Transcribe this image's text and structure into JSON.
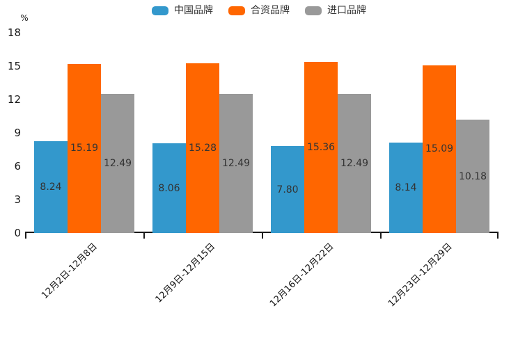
{
  "chart_data": {
    "type": "bar",
    "title": "",
    "xlabel": "",
    "ylabel": "%",
    "ylim": [
      0,
      18
    ],
    "y_ticks": [
      0,
      3,
      6,
      9,
      12,
      15,
      18
    ],
    "grid": false,
    "legend_position": "top",
    "categories": [
      "12月2日-12月8日",
      "12月9日-12月15日",
      "12月16日-12月22日",
      "12月23日-12月29日"
    ],
    "series": [
      {
        "name": "中国品牌",
        "color": "#3398CC",
        "values": [
          8.24,
          8.06,
          7.8,
          8.14
        ]
      },
      {
        "name": "合资品牌",
        "color": "#FF6600",
        "values": [
          15.19,
          15.28,
          15.36,
          15.09
        ]
      },
      {
        "name": "进口品牌",
        "color": "#999999",
        "values": [
          12.49,
          12.49,
          12.49,
          10.18
        ]
      }
    ],
    "value_label_decimals": 2,
    "axis_color": "#1a1a1a",
    "label_text_color": "#333333"
  }
}
